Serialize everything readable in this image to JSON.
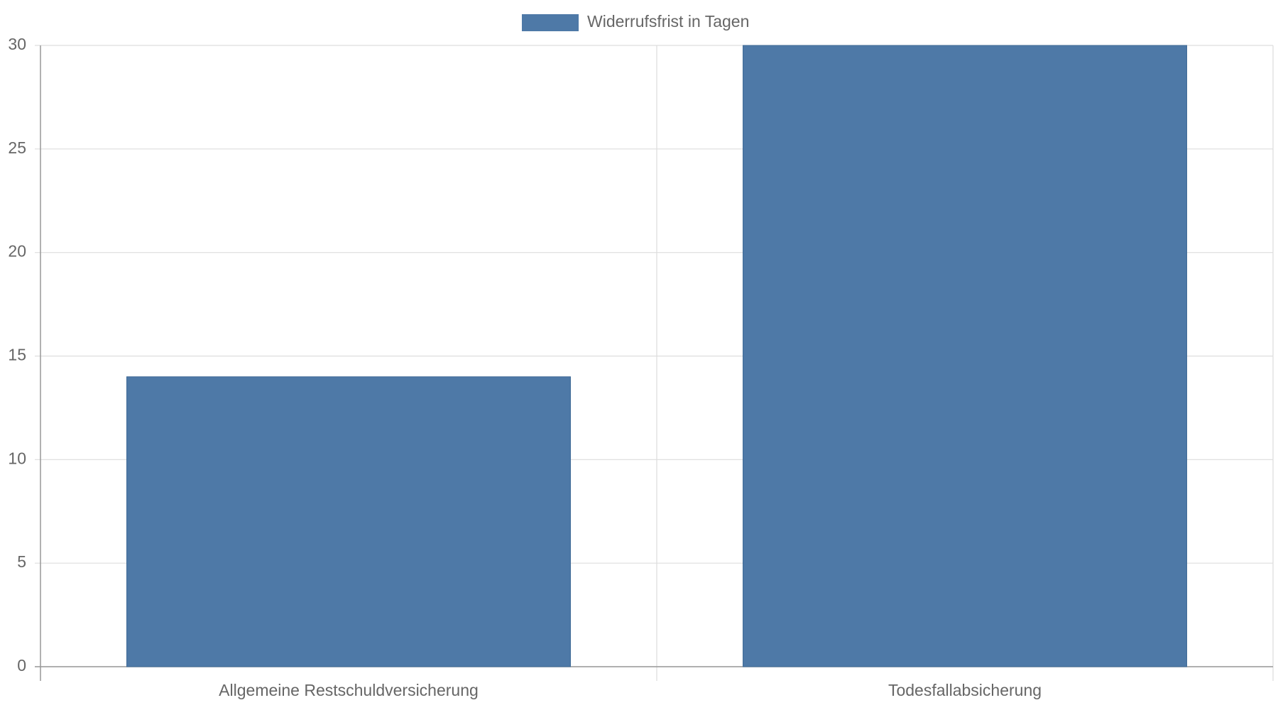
{
  "chart_data": {
    "type": "bar",
    "categories": [
      "Allgemeine Restschuldversicherung",
      "Todesfallabsicherung"
    ],
    "series": [
      {
        "name": "Widerrufsfrist in Tagen",
        "color": "#4e79a7",
        "values": [
          14,
          30
        ]
      }
    ],
    "ylim": [
      0,
      30
    ],
    "yticks": [
      0,
      5,
      10,
      15,
      20,
      25,
      30
    ],
    "grid": true,
    "legend": "top"
  }
}
